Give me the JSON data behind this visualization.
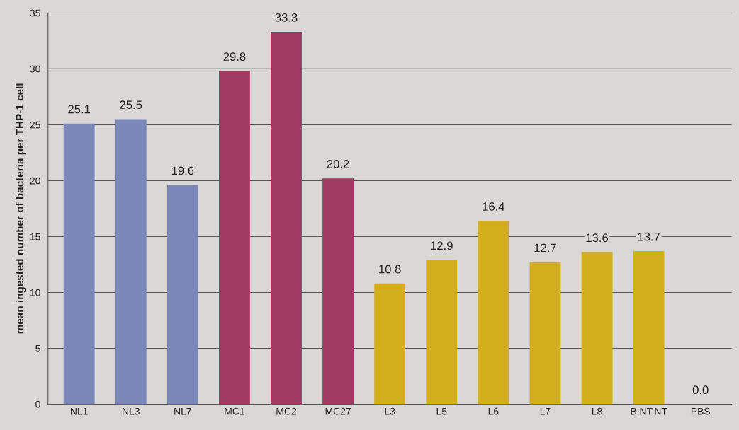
{
  "chart_data": {
    "type": "bar",
    "ylabel": "mean ingested number of bacteria per THP-1 cell",
    "categories": [
      "NL1",
      "NL3",
      "NL7",
      "MC1",
      "MC2",
      "MC27",
      "L3",
      "L5",
      "L6",
      "L7",
      "L8",
      "B:NT:NT",
      "PBS"
    ],
    "values": [
      25.1,
      25.5,
      19.6,
      29.8,
      33.3,
      20.2,
      10.8,
      12.9,
      16.4,
      12.7,
      13.6,
      13.7,
      0.0
    ],
    "colors": [
      "#7c87b9",
      "#7c87b9",
      "#7c87b9",
      "#a13a63",
      "#a13a63",
      "#a13a63",
      "#d2ae1c",
      "#d2ae1c",
      "#d2ae1c",
      "#d2ae1c",
      "#d2ae1c",
      "#d2ae1c",
      "#d2ae1c"
    ],
    "value_labels": [
      "25.1",
      "25.5",
      "19.6",
      "29.8",
      "33.3",
      "20.2",
      "10.8",
      "12.9",
      "16.4",
      "12.7",
      "13.6",
      "13.7",
      "0.0"
    ],
    "ylim": [
      0,
      35
    ],
    "yticks": [
      0,
      5,
      10,
      15,
      20,
      25,
      30,
      35
    ],
    "grid": "y"
  }
}
